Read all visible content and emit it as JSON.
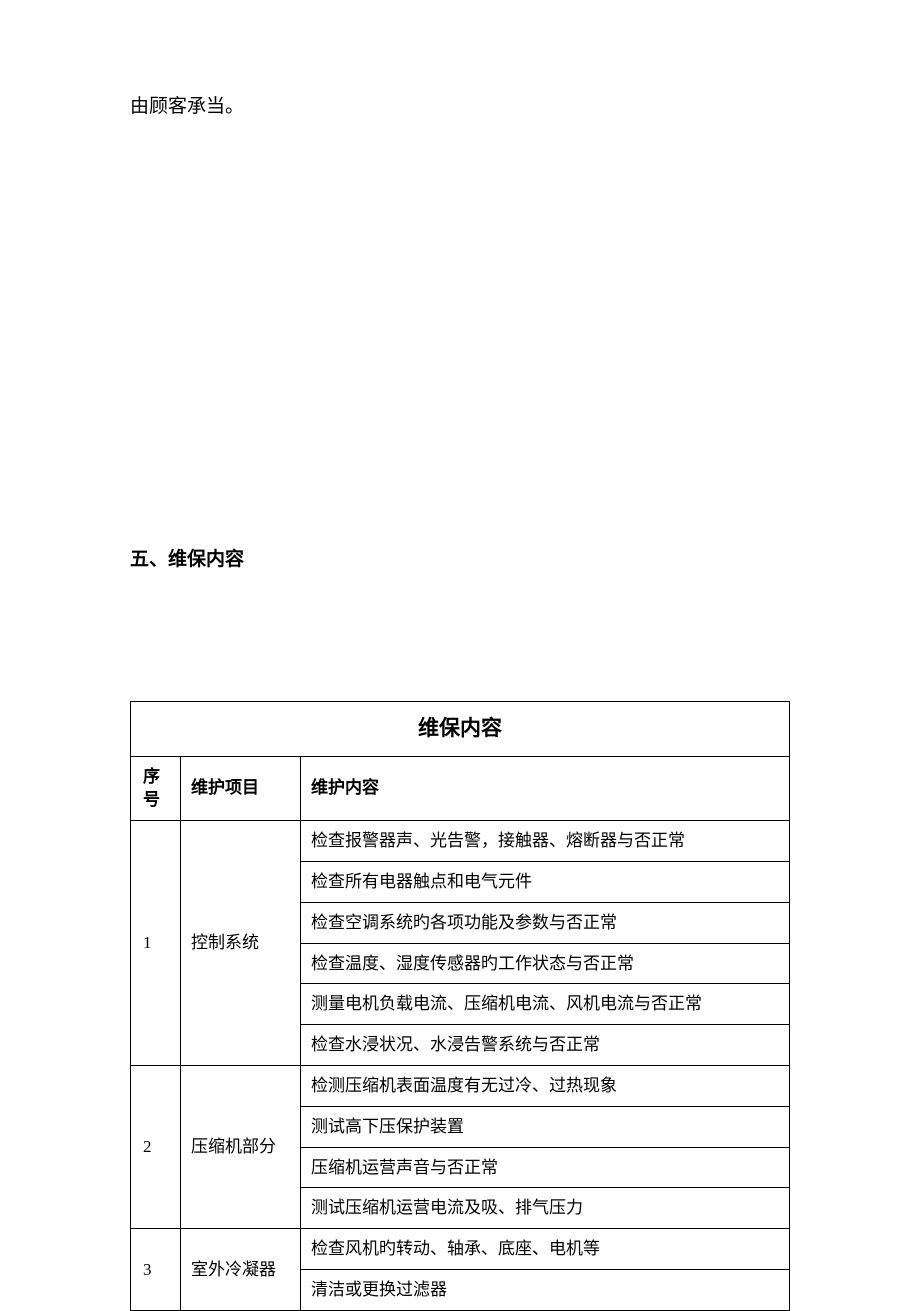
{
  "intro": "由顾客承当。",
  "sectionHeading": "五、维保内容",
  "table": {
    "title": "维保内容",
    "headers": {
      "seq": "序号",
      "item": "维护项目",
      "content": "维护内容"
    },
    "groups": [
      {
        "seq": "1",
        "item": "控制系统",
        "rows": [
          "检查报警器声、光告警，接触器、熔断器与否正常",
          "检查所有电器触点和电气元件",
          "检查空调系统旳各项功能及参数与否正常",
          "检查温度、湿度传感器旳工作状态与否正常",
          "测量电机负载电流、压缩机电流、风机电流与否正常",
          "检查水浸状况、水浸告警系统与否正常"
        ]
      },
      {
        "seq": "2",
        "item": "压缩机部分",
        "rows": [
          "检测压缩机表面温度有无过冷、过热现象",
          "测试高下压保护装置",
          "压缩机运营声音与否正常",
          "测试压缩机运营电流及吸、排气压力"
        ]
      },
      {
        "seq": "3",
        "item": "室外冷凝器",
        "rows": [
          "检查风机旳转动、轴承、底座、电机等",
          "清洁或更换过滤器"
        ]
      }
    ]
  },
  "colors": {
    "text": "#000000",
    "background": "#ffffff",
    "border": "#000000"
  },
  "fonts": {
    "body_size": 19,
    "table_title_size": 21,
    "table_cell_size": 17
  }
}
